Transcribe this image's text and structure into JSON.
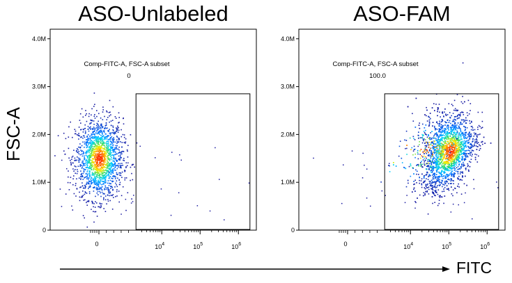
{
  "chart_data": [
    {
      "type": "scatter",
      "title": "ASO-Unlabeled",
      "ylabel": "FSC-A",
      "x_scale": "biexponential",
      "y_ticks": [
        "0",
        "1.0M",
        "2.0M",
        "3.0M",
        "4.0M"
      ],
      "x_tick_labels": [
        {
          "value": 0,
          "label": "0"
        },
        {
          "value": 10000,
          "label": "10^4"
        },
        {
          "value": 100000,
          "label": "10^5"
        },
        {
          "value": 1000000,
          "label": "10^6"
        }
      ],
      "ylim": [
        0,
        4200000
      ],
      "gate": {
        "name": "Comp-FITC-A, FSC-A subset",
        "percent": "0",
        "x_range": [
          2500,
          2000000
        ],
        "y_range": [
          0,
          2850000
        ]
      },
      "population": {
        "x_center": 0,
        "y_center": 1500000,
        "y_spread_sd": 420000,
        "coloring": "density"
      }
    },
    {
      "type": "scatter",
      "title": "ASO-FAM",
      "ylabel": "FSC-A",
      "x_scale": "biexponential",
      "y_ticks": [
        "0",
        "1.0M",
        "2.0M",
        "3.0M",
        "4.0M"
      ],
      "x_tick_labels": [
        {
          "value": 0,
          "label": "0"
        },
        {
          "value": 10000,
          "label": "10^4"
        },
        {
          "value": 100000,
          "label": "10^5"
        },
        {
          "value": 1000000,
          "label": "10^6"
        }
      ],
      "ylim": [
        0,
        4200000
      ],
      "gate": {
        "name": "Comp-FITC-A, FSC-A subset",
        "percent": "100.0",
        "x_range": [
          2500,
          2000000
        ],
        "y_range": [
          0,
          2850000
        ]
      },
      "population": {
        "x_center": 110000,
        "y_center": 1650000,
        "y_spread_sd": 380000,
        "coloring": "density"
      }
    }
  ],
  "xlabel": "FITC",
  "colors": {
    "low": "#1a1aa0",
    "mid": "#00c8ff",
    "high": "#ff2a00"
  }
}
